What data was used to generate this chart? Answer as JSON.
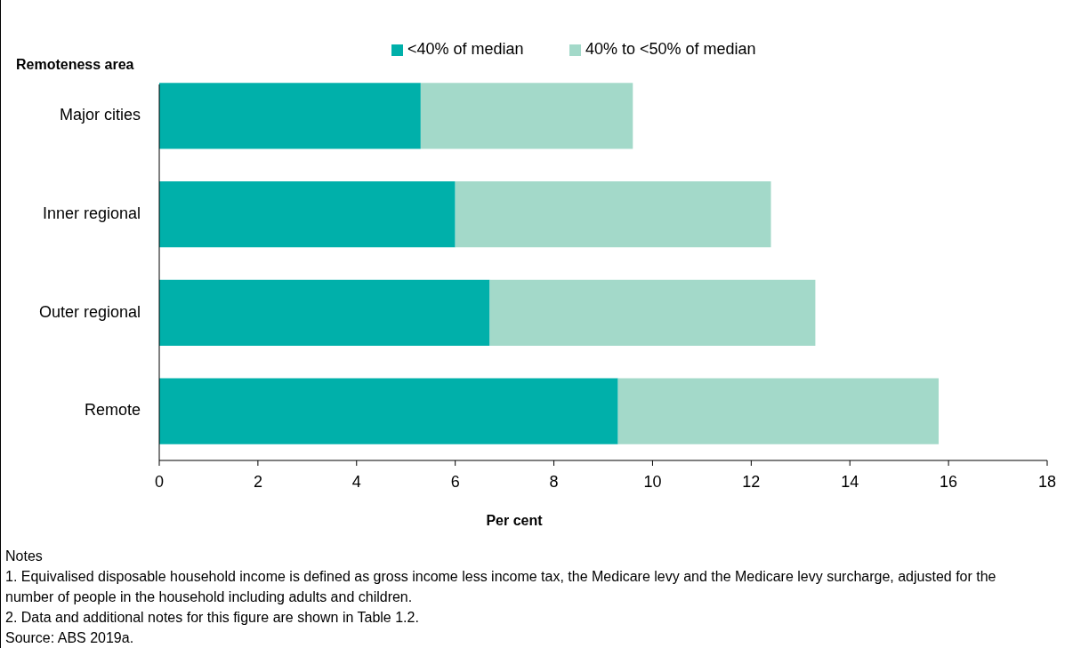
{
  "chart_data": {
    "type": "bar",
    "orientation": "horizontal",
    "stacked": true,
    "ylabel": "Remoteness area",
    "xlabel": "Per cent",
    "categories": [
      "Major cities",
      "Inner regional",
      "Outer regional",
      "Remote"
    ],
    "series": [
      {
        "name": "<40% of median",
        "color": "#00b0aa",
        "values": [
          5.3,
          6.0,
          6.7,
          9.3
        ]
      },
      {
        "name": "40% to <50% of median",
        "color": "#a3d9c9",
        "values": [
          4.3,
          6.4,
          6.6,
          6.5
        ]
      }
    ],
    "xlim": [
      0,
      18
    ],
    "xticks": [
      0,
      2,
      4,
      6,
      8,
      10,
      12,
      14,
      16,
      18
    ],
    "grid": false,
    "legend": "top",
    "annotations": [
      "Notes",
      "1. Equivalised disposable household income is defined as gross income less income tax, the Medicare levy and the Medicare levy surcharge, adjusted for the number of people in the household including adults and children.",
      "2. Data and additional notes for this figure are shown in Table 1.2.",
      "Source: ABS 2019a."
    ]
  }
}
